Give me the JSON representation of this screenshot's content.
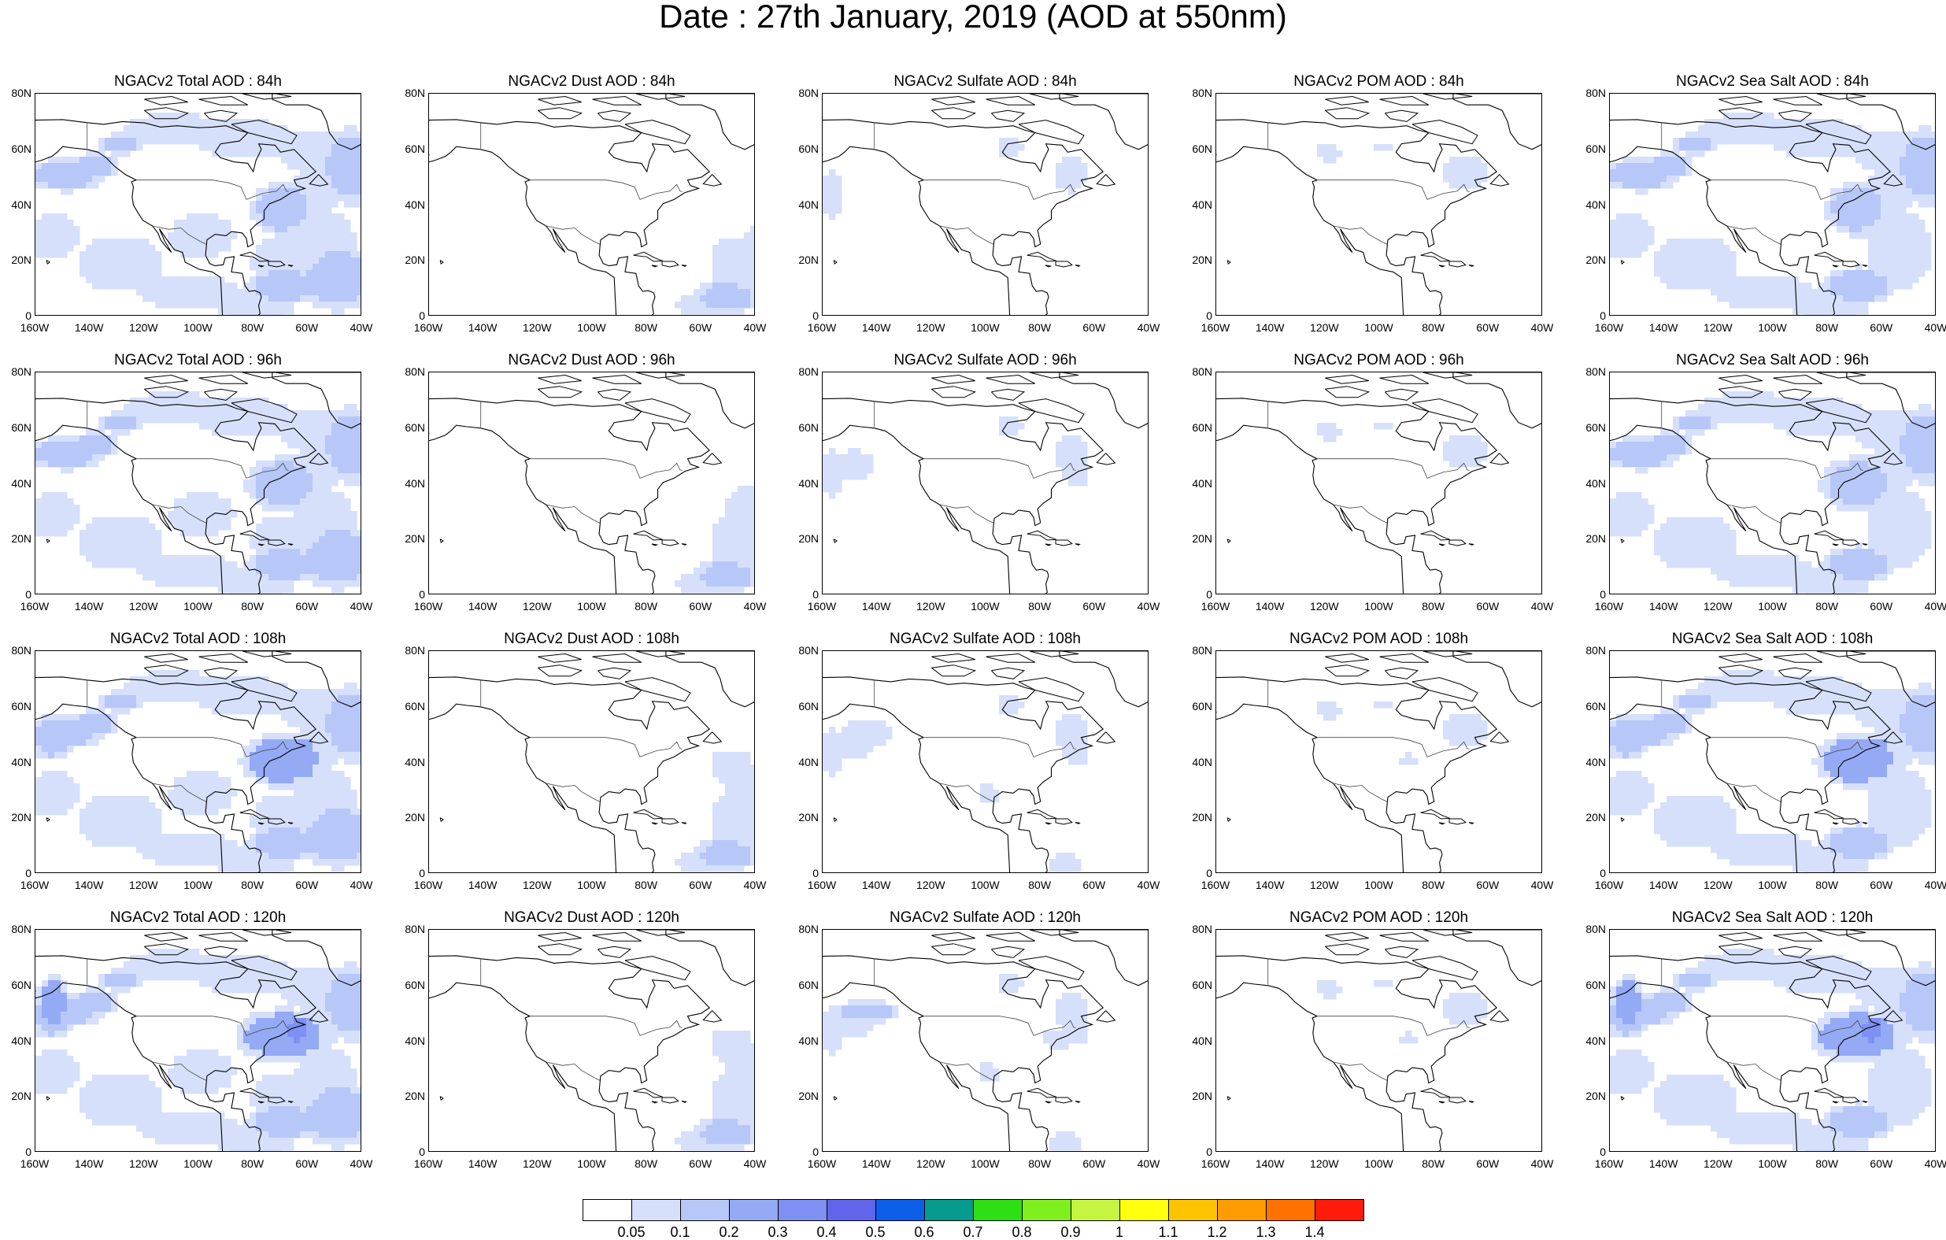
{
  "title": "Date : 27th January, 2019 (AOD at 550nm)",
  "panels": [
    [
      "NGACv2 Total AOD : 84h",
      "NGACv2 Dust AOD : 84h",
      "NGACv2 Sulfate AOD : 84h",
      "NGACv2 POM AOD : 84h",
      "NGACv2 Sea Salt AOD : 84h"
    ],
    [
      "NGACv2 Total AOD : 96h",
      "NGACv2 Dust AOD : 96h",
      "NGACv2 Sulfate AOD : 96h",
      "NGACv2 POM AOD : 96h",
      "NGACv2 Sea Salt AOD : 96h"
    ],
    [
      "NGACv2 Total AOD : 108h",
      "NGACv2 Dust AOD : 108h",
      "NGACv2 Sulfate AOD : 108h",
      "NGACv2 POM AOD : 108h",
      "NGACv2 Sea Salt AOD : 108h"
    ],
    [
      "NGACv2 Total AOD : 120h",
      "NGACv2 Dust AOD : 120h",
      "NGACv2 Sulfate AOD : 120h",
      "NGACv2 POM AOD : 120h",
      "NGACv2 Sea Salt  AOD : 120h"
    ]
  ],
  "y_ticks": [
    "80N",
    "60N",
    "40N",
    "20N",
    "0"
  ],
  "x_ticks": [
    "160W",
    "140W",
    "120W",
    "100W",
    "80W",
    "60W",
    "40W"
  ],
  "colorbar": {
    "labels": [
      "0.05",
      "0.1",
      "0.2",
      "0.3",
      "0.4",
      "0.5",
      "0.6",
      "0.7",
      "0.8",
      "0.9",
      "1",
      "1.1",
      "1.2",
      "1.3",
      "1.4"
    ],
    "colors": [
      "#ffffff",
      "#d6e0fb",
      "#b7c7f8",
      "#94aaf5",
      "#7e90f2",
      "#6065ec",
      "#0c5ee8",
      "#079a8f",
      "#2edf16",
      "#7fef1e",
      "#c6f541",
      "#ffff0e",
      "#ffc400",
      "#ff9c00",
      "#ff7200",
      "#ff1a0b"
    ]
  }
}
